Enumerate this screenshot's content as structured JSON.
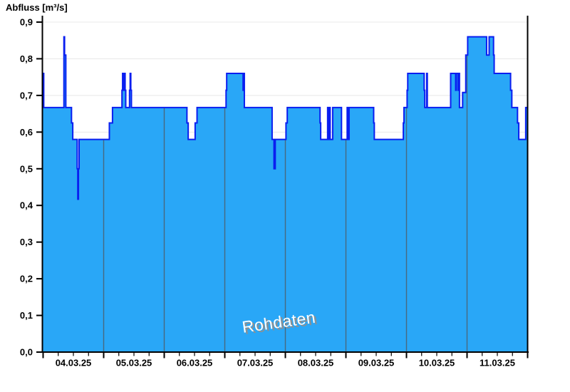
{
  "chart_data": {
    "type": "area",
    "step": true,
    "title": "Abfluss [m³/s]",
    "ylabel": "Abfluss [m³/s]",
    "xlabel": "",
    "watermark": "Rohdaten",
    "legend": "none",
    "grid": "horizontal light-gray lines every 0.1; vertical day-separator lines visible inside filled area only",
    "ylim": [
      0.0,
      0.9
    ],
    "y_tick_step": 0.1,
    "y_tick_labels": [
      "0,0",
      "0,1",
      "0,2",
      "0,3",
      "0,4",
      "0,5",
      "0,6",
      "0,7",
      "0,8",
      "0,9"
    ],
    "x_tick_labels": [
      "04.03.25",
      "05.03.25",
      "06.03.25",
      "07.03.25",
      "08.03.25",
      "09.03.25",
      "10.03.25",
      "11.03.25"
    ],
    "x_axis": "time, 8 days (04.03.25 00:00 to 12.03.25 00:00), minor ticks every 6 h",
    "x_range_hours": [
      0,
      192
    ],
    "series": [
      {
        "name": "Rohdaten",
        "unit": "m³/s",
        "note": "step points: [hours since 04.03.25 00:00, discharge]; each value holds until next point",
        "points": [
          [
            0,
            0.76
          ],
          [
            0.25,
            0.667
          ],
          [
            8.25,
            0.86
          ],
          [
            8.5,
            0.81
          ],
          [
            9,
            0.667
          ],
          [
            11.25,
            0.625
          ],
          [
            11.75,
            0.58
          ],
          [
            13.5,
            0.5
          ],
          [
            13.75,
            0.417
          ],
          [
            14,
            0.5
          ],
          [
            14.25,
            0.58
          ],
          [
            26.25,
            0.625
          ],
          [
            27.5,
            0.667
          ],
          [
            31.25,
            0.714
          ],
          [
            31.5,
            0.76
          ],
          [
            31.75,
            0.714
          ],
          [
            32.25,
            0.76
          ],
          [
            32.5,
            0.714
          ],
          [
            32.75,
            0.667
          ],
          [
            34.25,
            0.714
          ],
          [
            34.5,
            0.76
          ],
          [
            34.75,
            0.714
          ],
          [
            35,
            0.667
          ],
          [
            57,
            0.625
          ],
          [
            57.5,
            0.58
          ],
          [
            60.25,
            0.625
          ],
          [
            61,
            0.667
          ],
          [
            72.5,
            0.714
          ],
          [
            72.75,
            0.76
          ],
          [
            79.25,
            0.714
          ],
          [
            79.5,
            0.76
          ],
          [
            79.75,
            0.667
          ],
          [
            90.75,
            0.58
          ],
          [
            91.5,
            0.5
          ],
          [
            92,
            0.58
          ],
          [
            96.25,
            0.625
          ],
          [
            96.75,
            0.667
          ],
          [
            109.75,
            0.625
          ],
          [
            110,
            0.58
          ],
          [
            112.75,
            0.667
          ],
          [
            113,
            0.58
          ],
          [
            113.5,
            0.667
          ],
          [
            113.75,
            0.58
          ],
          [
            114.75,
            0.667
          ],
          [
            118.25,
            0.58
          ],
          [
            120.5,
            0.667
          ],
          [
            120.75,
            0.58
          ],
          [
            121.25,
            0.667
          ],
          [
            131,
            0.625
          ],
          [
            131.25,
            0.58
          ],
          [
            142.75,
            0.625
          ],
          [
            143,
            0.667
          ],
          [
            144.25,
            0.714
          ],
          [
            144.5,
            0.76
          ],
          [
            151,
            0.714
          ],
          [
            151.25,
            0.667
          ],
          [
            152,
            0.76
          ],
          [
            152.25,
            0.667
          ],
          [
            161.5,
            0.76
          ],
          [
            163.5,
            0.714
          ],
          [
            163.75,
            0.76
          ],
          [
            164.5,
            0.714
          ],
          [
            164.75,
            0.76
          ],
          [
            165,
            0.667
          ],
          [
            166.25,
            0.708
          ],
          [
            167.5,
            0.81
          ],
          [
            168.25,
            0.86
          ],
          [
            175.75,
            0.81
          ],
          [
            176.75,
            0.86
          ],
          [
            178.5,
            0.81
          ],
          [
            178.75,
            0.76
          ],
          [
            185.25,
            0.714
          ],
          [
            185.75,
            0.667
          ],
          [
            188,
            0.625
          ],
          [
            188.5,
            0.58
          ],
          [
            191.25,
            0.667
          ]
        ],
        "end_hour": 192
      }
    ],
    "colors": {
      "fill": "#29A7F7",
      "line": "#0A1EF0",
      "day_line": "#48697F",
      "grid": "#E8E8E8",
      "axis": "#000000",
      "right_border": "#000000",
      "watermark_text": "#FFFFFF",
      "watermark_shadow": "#8F8F8F"
    }
  }
}
